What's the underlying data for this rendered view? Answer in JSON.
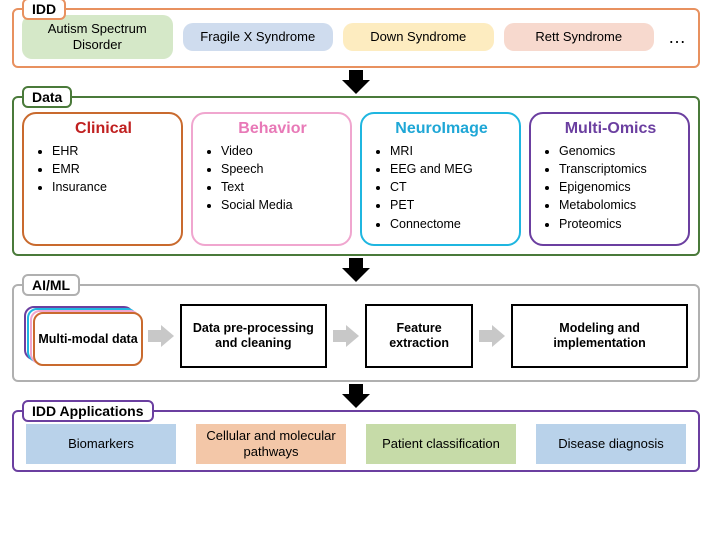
{
  "idd": {
    "label": "IDD",
    "border_color": "#e8915f",
    "items": [
      {
        "label": "Autism Spectrum Disorder",
        "bg": "#d5e8c8"
      },
      {
        "label": "Fragile X Syndrome",
        "bg": "#cfdcee"
      },
      {
        "label": "Down Syndrome",
        "bg": "#fdecc0"
      },
      {
        "label": "Rett Syndrome",
        "bg": "#f7d9ce"
      }
    ],
    "ellipsis": "…"
  },
  "data": {
    "label": "Data",
    "border_color": "#4a7a3a",
    "cards": [
      {
        "title": "Clinical",
        "title_color": "#c02020",
        "border": "#c96a2e",
        "items": [
          "EHR",
          "EMR",
          "Insurance"
        ]
      },
      {
        "title": "Behavior",
        "title_color": "#e879b7",
        "border": "#f0a6cf",
        "items": [
          "Video",
          "Speech",
          "Text",
          "Social Media"
        ]
      },
      {
        "title": "NeuroImage",
        "title_color": "#1fa7d6",
        "border": "#1fb6e0",
        "items": [
          "MRI",
          "EEG and MEG",
          "CT",
          "PET",
          "Connectome"
        ]
      },
      {
        "title": "Multi-Omics",
        "title_color": "#6b3fa0",
        "border": "#6b3fa0",
        "items": [
          "Genomics",
          "Transcriptomics",
          "Epigenomics",
          "Metabolomics",
          "Proteomics"
        ]
      }
    ]
  },
  "aiml": {
    "label": "AI/ML",
    "border_color": "#b0b0b0",
    "stack_colors": [
      "#6b3fa0",
      "#1fb6e0",
      "#f0a6cf",
      "#c96a2e"
    ],
    "multi_label": "Multi-modal data",
    "steps": [
      "Data pre-processing and cleaning",
      "Feature extraction",
      "Modeling and implementation"
    ],
    "step_widths": [
      150,
      110,
      180
    ],
    "arrow_color": "#c8c8c8"
  },
  "apps": {
    "label": "IDD Applications",
    "border_color": "#6b3fa0",
    "items": [
      {
        "label": "Biomarkers",
        "bg": "#b9d2ea"
      },
      {
        "label": "Cellular and molecular pathways",
        "bg": "#f3c7a8"
      },
      {
        "label": "Patient classification",
        "bg": "#c6dba8"
      },
      {
        "label": "Disease diagnosis",
        "bg": "#b9d2ea"
      }
    ]
  },
  "arrows": {
    "down_shaft_heights": [
      10,
      10,
      10
    ]
  }
}
